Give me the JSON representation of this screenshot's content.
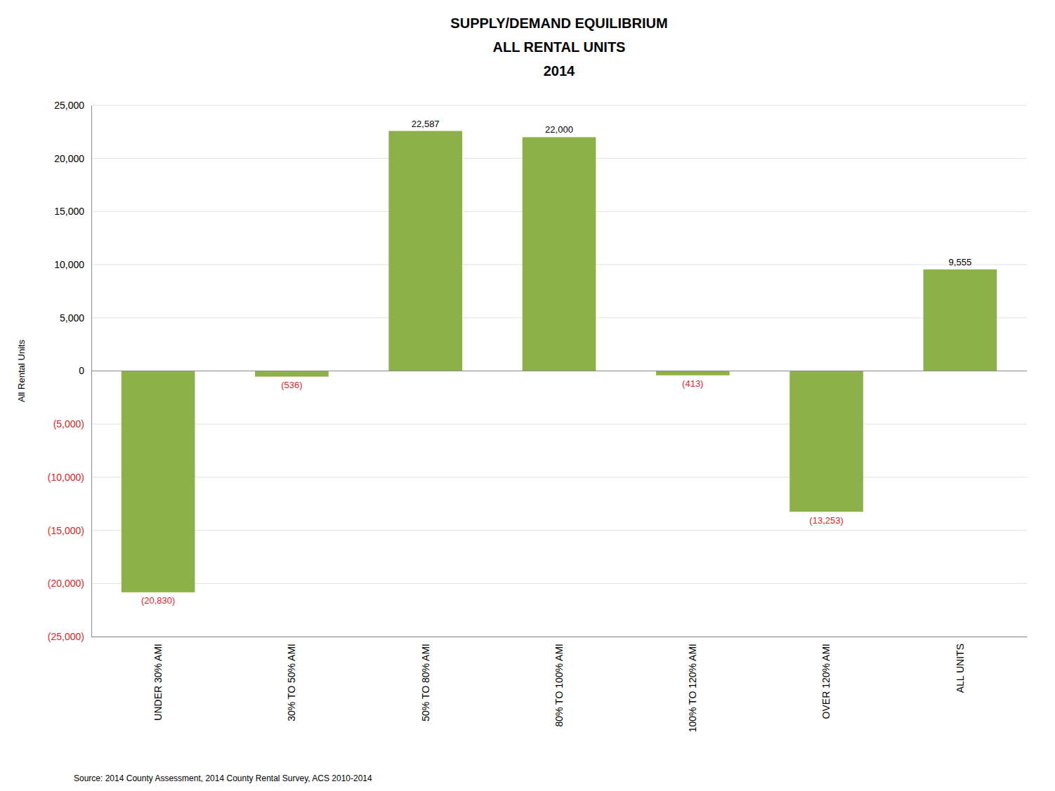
{
  "chart_data": {
    "type": "bar",
    "title": "SUPPLY/DEMAND EQUILIBRIUM\nALL RENTAL UNITS\n2014",
    "categories": [
      "UNDER 30% AMI",
      "30% TO 50% AMI",
      "50% TO 80% AMI",
      "80% TO 100% AMI",
      "100% TO 120% AMI",
      "OVER 120% AMI",
      "ALL UNITS"
    ],
    "values": [
      -20830,
      -536,
      22587,
      22000,
      -413,
      -13253,
      9555
    ],
    "value_labels": [
      "(20,830)",
      "(536)",
      "22,587",
      "22,000",
      "(413)",
      "(13,253)",
      "9,555"
    ],
    "data_labels": true,
    "color": "#8db04a",
    "y_label": "All Rental Units",
    "source": "Source: 2014 County Assessment, 2014 County Rental Survey, ACS 2010-2014",
    "ylim": [
      -25000,
      25000
    ],
    "yticks": [
      {
        "value": -25000,
        "label": "(25,000)"
      },
      {
        "value": -20000,
        "label": "(20,000)"
      },
      {
        "value": -15000,
        "label": "(15,000)"
      },
      {
        "value": -10000,
        "label": "(10,000)"
      },
      {
        "value": -5000,
        "label": "(5,000)"
      },
      0,
      {
        "value": 5000,
        "label": "5,000"
      },
      {
        "value": 10000,
        "label": "10,000"
      },
      {
        "value": 15000,
        "label": "15,000"
      },
      {
        "value": 20000,
        "label": "20,000"
      },
      {
        "value": 25000,
        "label": "25,000"
      }
    ],
    "grid": true
  }
}
